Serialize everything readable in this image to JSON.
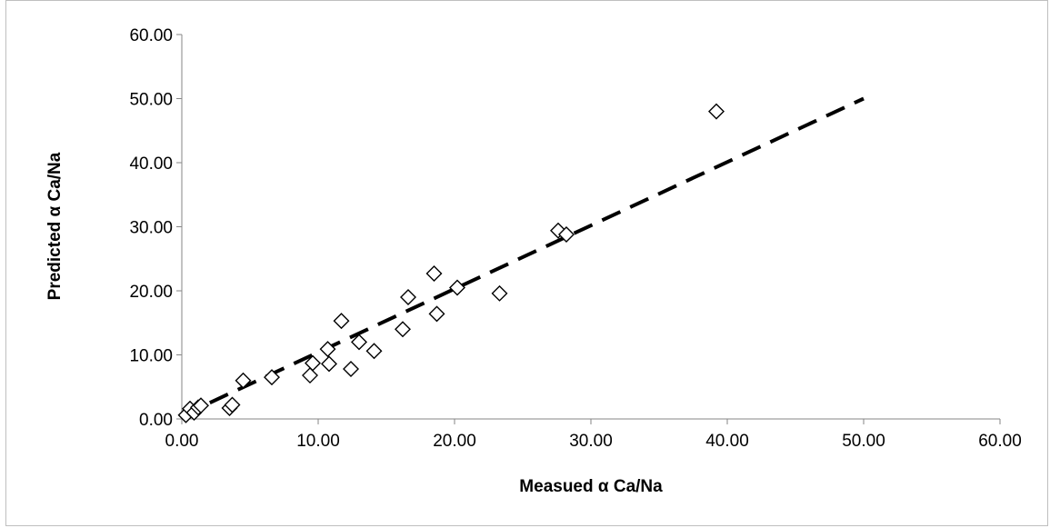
{
  "chart_data": {
    "type": "scatter",
    "xlabel": "Measued α Ca/Na",
    "ylabel": "Predicted α Ca/Na",
    "xlim": [
      0,
      60
    ],
    "ylim": [
      0,
      60
    ],
    "x_ticks": [
      "0.00",
      "10.00",
      "20.00",
      "30.00",
      "40.00",
      "50.00",
      "60.00"
    ],
    "y_ticks": [
      "0.00",
      "10.00",
      "20.00",
      "30.00",
      "40.00",
      "50.00",
      "60.00"
    ],
    "grid": false,
    "legend": "none",
    "marker": "diamond-open",
    "series": [
      {
        "points": [
          [
            0.3,
            0.6
          ],
          [
            0.6,
            1.6
          ],
          [
            0.9,
            1.0
          ],
          [
            1.2,
            1.8
          ],
          [
            1.4,
            2.1
          ],
          [
            3.5,
            1.7
          ],
          [
            3.7,
            2.2
          ],
          [
            4.5,
            6.0
          ],
          [
            6.6,
            6.5
          ],
          [
            9.4,
            6.8
          ],
          [
            9.6,
            8.7
          ],
          [
            10.7,
            10.9
          ],
          [
            10.8,
            8.6
          ],
          [
            11.7,
            15.3
          ],
          [
            12.4,
            7.8
          ],
          [
            13.0,
            12.0
          ],
          [
            14.1,
            10.6
          ],
          [
            16.2,
            14.0
          ],
          [
            16.6,
            19.0
          ],
          [
            18.5,
            22.7
          ],
          [
            18.7,
            16.4
          ],
          [
            20.2,
            20.5
          ],
          [
            23.3,
            19.6
          ],
          [
            27.6,
            29.4
          ],
          [
            28.2,
            28.8
          ],
          [
            39.2,
            48.0
          ]
        ]
      }
    ],
    "fit_line": {
      "style": "dashed",
      "color": "#000000",
      "from": [
        0,
        0.5
      ],
      "to": [
        50,
        50
      ]
    }
  }
}
